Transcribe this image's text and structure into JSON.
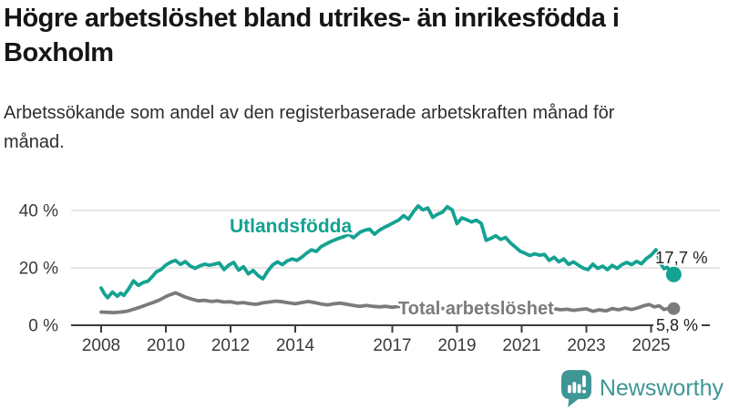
{
  "chart_data": {
    "type": "line",
    "title": "Högre arbetslöshet bland utrikes- än inrikesfödda i Boxholm",
    "subtitle": "Arbetssökande som andel av den registerbaserade arbetskraften månad för månad.",
    "unit": "%",
    "ylim": [
      0,
      45
    ],
    "xlim": [
      2008,
      2025.7
    ],
    "grid": "horizontal",
    "legend_position": "inline-labels",
    "yticks": [
      {
        "value": 0,
        "label": "0 %"
      },
      {
        "value": 20,
        "label": "20 %"
      },
      {
        "value": 40,
        "label": "40 %"
      }
    ],
    "xticks": [
      "2008",
      "2010",
      "2012",
      "2014",
      "2017",
      "2019",
      "2021",
      "2023",
      "2025"
    ],
    "xtick_years": [
      2008,
      2010,
      2012,
      2014,
      2017,
      2019,
      2021,
      2023,
      2025
    ],
    "series": [
      {
        "name": "Utlandsfödda",
        "color": "#14a292",
        "end_value": 17.7,
        "end_label": "17,7 %",
        "points": [
          [
            2008.0,
            13.0
          ],
          [
            2008.1,
            11.0
          ],
          [
            2008.2,
            9.6
          ],
          [
            2008.35,
            11.6
          ],
          [
            2008.5,
            10.1
          ],
          [
            2008.6,
            11.2
          ],
          [
            2008.7,
            10.4
          ],
          [
            2008.85,
            12.7
          ],
          [
            2009.0,
            15.5
          ],
          [
            2009.15,
            13.9
          ],
          [
            2009.3,
            14.9
          ],
          [
            2009.45,
            15.4
          ],
          [
            2009.6,
            17.2
          ],
          [
            2009.7,
            18.6
          ],
          [
            2009.85,
            19.4
          ],
          [
            2010.0,
            21.0
          ],
          [
            2010.15,
            22.0
          ],
          [
            2010.3,
            22.6
          ],
          [
            2010.45,
            21.2
          ],
          [
            2010.6,
            22.2
          ],
          [
            2010.75,
            20.7
          ],
          [
            2010.9,
            19.8
          ],
          [
            2011.05,
            20.7
          ],
          [
            2011.2,
            21.3
          ],
          [
            2011.35,
            20.9
          ],
          [
            2011.5,
            21.3
          ],
          [
            2011.65,
            21.7
          ],
          [
            2011.8,
            19.4
          ],
          [
            2011.95,
            21.0
          ],
          [
            2012.1,
            21.9
          ],
          [
            2012.25,
            19.2
          ],
          [
            2012.4,
            20.4
          ],
          [
            2012.55,
            17.9
          ],
          [
            2012.7,
            19.1
          ],
          [
            2012.85,
            17.3
          ],
          [
            2013.0,
            16.2
          ],
          [
            2013.15,
            18.9
          ],
          [
            2013.3,
            21.0
          ],
          [
            2013.45,
            22.1
          ],
          [
            2013.6,
            21.1
          ],
          [
            2013.75,
            22.4
          ],
          [
            2013.9,
            23.1
          ],
          [
            2014.05,
            22.6
          ],
          [
            2014.2,
            23.7
          ],
          [
            2014.35,
            25.1
          ],
          [
            2014.5,
            26.3
          ],
          [
            2014.65,
            25.7
          ],
          [
            2014.8,
            27.4
          ],
          [
            2015.0,
            28.6
          ],
          [
            2015.15,
            29.4
          ],
          [
            2015.3,
            30.1
          ],
          [
            2015.5,
            30.9
          ],
          [
            2015.65,
            31.7
          ],
          [
            2015.8,
            30.5
          ],
          [
            2016.0,
            32.4
          ],
          [
            2016.15,
            33.1
          ],
          [
            2016.3,
            33.5
          ],
          [
            2016.45,
            31.7
          ],
          [
            2016.6,
            33.1
          ],
          [
            2016.75,
            34.1
          ],
          [
            2016.9,
            34.9
          ],
          [
            2017.05,
            35.8
          ],
          [
            2017.2,
            36.7
          ],
          [
            2017.35,
            38.2
          ],
          [
            2017.5,
            37.0
          ],
          [
            2017.65,
            39.5
          ],
          [
            2017.8,
            41.6
          ],
          [
            2017.95,
            40.2
          ],
          [
            2018.1,
            40.9
          ],
          [
            2018.25,
            37.6
          ],
          [
            2018.4,
            38.7
          ],
          [
            2018.55,
            39.4
          ],
          [
            2018.7,
            41.3
          ],
          [
            2018.85,
            40.2
          ],
          [
            2019.0,
            35.4
          ],
          [
            2019.15,
            37.4
          ],
          [
            2019.3,
            36.8
          ],
          [
            2019.45,
            36.0
          ],
          [
            2019.6,
            36.6
          ],
          [
            2019.75,
            35.5
          ],
          [
            2019.9,
            29.6
          ],
          [
            2020.05,
            30.3
          ],
          [
            2020.2,
            31.2
          ],
          [
            2020.35,
            29.9
          ],
          [
            2020.5,
            30.6
          ],
          [
            2020.65,
            28.7
          ],
          [
            2020.8,
            27.3
          ],
          [
            2020.95,
            25.8
          ],
          [
            2021.1,
            25.1
          ],
          [
            2021.25,
            24.3
          ],
          [
            2021.4,
            24.9
          ],
          [
            2021.55,
            24.4
          ],
          [
            2021.7,
            24.7
          ],
          [
            2021.85,
            22.6
          ],
          [
            2022.0,
            23.7
          ],
          [
            2022.15,
            22.1
          ],
          [
            2022.3,
            23.1
          ],
          [
            2022.45,
            21.2
          ],
          [
            2022.6,
            22.1
          ],
          [
            2022.75,
            21.0
          ],
          [
            2022.9,
            19.9
          ],
          [
            2023.05,
            19.4
          ],
          [
            2023.2,
            21.3
          ],
          [
            2023.35,
            19.8
          ],
          [
            2023.5,
            20.6
          ],
          [
            2023.65,
            19.4
          ],
          [
            2023.8,
            20.9
          ],
          [
            2023.95,
            19.8
          ],
          [
            2024.1,
            21.1
          ],
          [
            2024.25,
            21.9
          ],
          [
            2024.4,
            21.1
          ],
          [
            2024.55,
            22.3
          ],
          [
            2024.7,
            21.4
          ],
          [
            2024.85,
            23.2
          ],
          [
            2025.0,
            24.4
          ],
          [
            2025.15,
            26.3
          ],
          [
            2025.3,
            21.4
          ],
          [
            2025.4,
            19.7
          ],
          [
            2025.5,
            20.2
          ],
          [
            2025.6,
            18.4
          ],
          [
            2025.7,
            17.7
          ]
        ]
      },
      {
        "name": "Total arbetslöshet",
        "color": "#7b7b7b",
        "end_value": 5.8,
        "end_label": "5,8 %",
        "points": [
          [
            2008.0,
            4.6
          ],
          [
            2008.2,
            4.5
          ],
          [
            2008.4,
            4.4
          ],
          [
            2008.6,
            4.6
          ],
          [
            2008.8,
            4.9
          ],
          [
            2009.0,
            5.6
          ],
          [
            2009.2,
            6.3
          ],
          [
            2009.4,
            7.1
          ],
          [
            2009.6,
            7.9
          ],
          [
            2009.8,
            8.8
          ],
          [
            2010.0,
            10.0
          ],
          [
            2010.15,
            10.7
          ],
          [
            2010.3,
            11.3
          ],
          [
            2010.45,
            10.6
          ],
          [
            2010.6,
            9.8
          ],
          [
            2010.8,
            9.1
          ],
          [
            2011.0,
            8.5
          ],
          [
            2011.2,
            8.7
          ],
          [
            2011.4,
            8.3
          ],
          [
            2011.6,
            8.5
          ],
          [
            2011.8,
            8.1
          ],
          [
            2012.0,
            8.2
          ],
          [
            2012.2,
            7.7
          ],
          [
            2012.4,
            7.9
          ],
          [
            2012.6,
            7.5
          ],
          [
            2012.8,
            7.3
          ],
          [
            2013.0,
            7.8
          ],
          [
            2013.2,
            8.1
          ],
          [
            2013.4,
            8.4
          ],
          [
            2013.6,
            8.2
          ],
          [
            2013.8,
            7.8
          ],
          [
            2014.0,
            7.5
          ],
          [
            2014.2,
            7.9
          ],
          [
            2014.4,
            8.3
          ],
          [
            2014.6,
            7.9
          ],
          [
            2014.8,
            7.4
          ],
          [
            2015.0,
            7.1
          ],
          [
            2015.2,
            7.5
          ],
          [
            2015.4,
            7.7
          ],
          [
            2015.6,
            7.3
          ],
          [
            2015.8,
            6.9
          ],
          [
            2016.0,
            6.6
          ],
          [
            2016.2,
            6.9
          ],
          [
            2016.4,
            6.6
          ],
          [
            2016.6,
            6.4
          ],
          [
            2016.8,
            6.6
          ],
          [
            2017.0,
            6.3
          ],
          [
            2017.2,
            6.6
          ],
          [
            2017.4,
            6.2
          ],
          [
            2017.6,
            6.4
          ],
          [
            2017.8,
            6.1
          ],
          [
            2018.0,
            6.2
          ],
          [
            2018.2,
            5.9
          ],
          [
            2018.4,
            6.1
          ],
          [
            2018.6,
            5.8
          ],
          [
            2018.8,
            6.0
          ],
          [
            2019.0,
            5.7
          ],
          [
            2019.2,
            5.9
          ],
          [
            2019.4,
            5.6
          ],
          [
            2019.6,
            5.8
          ],
          [
            2019.8,
            5.6
          ],
          [
            2020.0,
            6.0
          ],
          [
            2020.2,
            6.3
          ],
          [
            2020.4,
            6.1
          ],
          [
            2020.6,
            5.9
          ],
          [
            2020.8,
            5.7
          ],
          [
            2021.0,
            5.9
          ],
          [
            2021.2,
            5.6
          ],
          [
            2021.4,
            5.8
          ],
          [
            2021.6,
            5.5
          ],
          [
            2021.8,
            5.7
          ],
          [
            2022.0,
            5.8
          ],
          [
            2022.2,
            5.4
          ],
          [
            2022.4,
            5.6
          ],
          [
            2022.6,
            5.2
          ],
          [
            2022.8,
            5.5
          ],
          [
            2023.0,
            5.7
          ],
          [
            2023.2,
            4.9
          ],
          [
            2023.4,
            5.4
          ],
          [
            2023.6,
            5.0
          ],
          [
            2023.8,
            5.8
          ],
          [
            2024.0,
            5.4
          ],
          [
            2024.2,
            6.0
          ],
          [
            2024.4,
            5.5
          ],
          [
            2024.6,
            6.1
          ],
          [
            2024.8,
            6.9
          ],
          [
            2024.95,
            7.2
          ],
          [
            2025.1,
            6.4
          ],
          [
            2025.25,
            6.8
          ],
          [
            2025.4,
            5.5
          ],
          [
            2025.55,
            5.9
          ],
          [
            2025.7,
            5.8
          ]
        ]
      }
    ],
    "colors": {
      "gridline": "#d8d8d8",
      "axis": "#3c3c3c",
      "tick_text": "#3a3a3a",
      "value_label_text": "#222222"
    }
  },
  "branding": {
    "wordmark": "Newsworthy",
    "logo_icon": "newsworthy-bubble-barchart-icon",
    "color": "#3e9695"
  }
}
